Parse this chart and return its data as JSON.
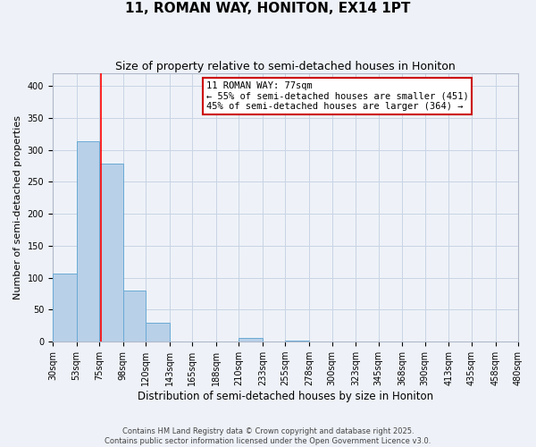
{
  "title": "11, ROMAN WAY, HONITON, EX14 1PT",
  "subtitle": "Size of property relative to semi-detached houses in Honiton",
  "xlabel": "Distribution of semi-detached houses by size in Honiton",
  "ylabel": "Number of semi-detached properties",
  "bin_edges": [
    30,
    53,
    75,
    98,
    120,
    143,
    165,
    188,
    210,
    233,
    255,
    278,
    300,
    323,
    345,
    368,
    390,
    413,
    435,
    458,
    480
  ],
  "bar_heights": [
    107,
    313,
    278,
    80,
    29,
    0,
    0,
    0,
    6,
    0,
    2,
    0,
    0,
    0,
    0,
    0,
    0,
    0,
    0,
    0
  ],
  "bar_color": "#b8d0e8",
  "bar_edge_color": "#6aaad4",
  "grid_color": "#c8d4e4",
  "bg_color": "#eef2f8",
  "red_line_x": 77,
  "annotation_line1": "11 ROMAN WAY: 77sqm",
  "annotation_line2": "← 55% of semi-detached houses are smaller (451)",
  "annotation_line3": "45% of semi-detached houses are larger (364) →",
  "annotation_box_color": "#ffffff",
  "annotation_border_color": "#cc0000",
  "ylim": [
    0,
    420
  ],
  "yticks": [
    0,
    50,
    100,
    150,
    200,
    250,
    300,
    350,
    400
  ],
  "footer_line1": "Contains HM Land Registry data © Crown copyright and database right 2025.",
  "footer_line2": "Contains public sector information licensed under the Open Government Licence v3.0.",
  "title_fontsize": 11,
  "subtitle_fontsize": 9,
  "tick_label_fontsize": 7,
  "ylabel_fontsize": 8,
  "xlabel_fontsize": 8.5,
  "annotation_fontsize": 7.5
}
